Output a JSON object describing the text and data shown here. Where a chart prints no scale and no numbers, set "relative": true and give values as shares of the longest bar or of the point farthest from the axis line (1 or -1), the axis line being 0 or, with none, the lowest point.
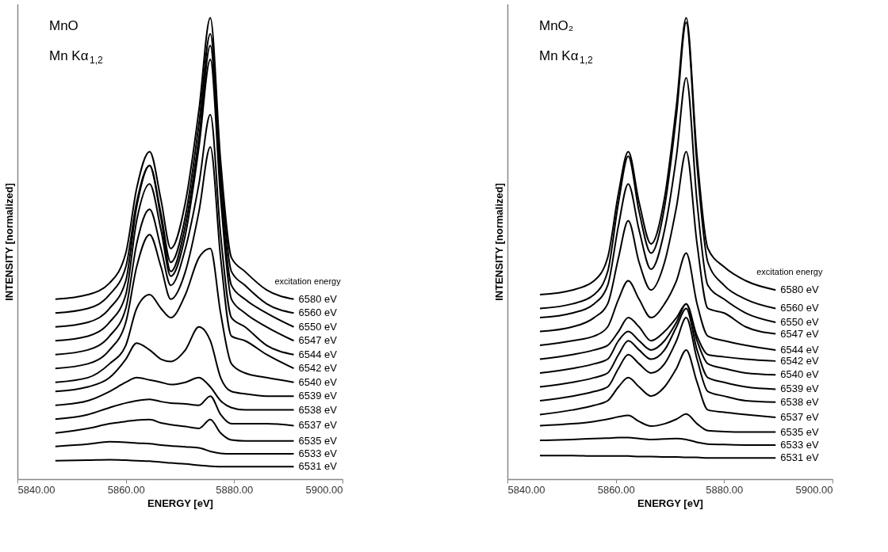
{
  "chart_data": [
    {
      "type": "line",
      "relative": true,
      "xlabel": "ENERGY  [eV]",
      "ylabel": "INTENSITY  [normalized]",
      "legend_title": "excitation energy",
      "grid": false,
      "line_style": "solid",
      "annotations": [
        "MnO",
        "Mn Kα$_{1,2}$"
      ],
      "xlim": [
        5840,
        5900
      ],
      "xticks": [
        {
          "value": 5840,
          "label": "5840.00"
        },
        {
          "value": 5860,
          "label": "5860.00"
        },
        {
          "value": 5880,
          "label": "5880.00"
        },
        {
          "value": 5900,
          "label": "5900.00"
        }
      ],
      "x": [
        5847,
        5853,
        5857,
        5860,
        5862,
        5864.4,
        5866.5,
        5868.3,
        5871,
        5873.5,
        5875.6,
        5877.5,
        5879.5,
        5882,
        5886,
        5891
      ],
      "series": [
        {
          "name": "6580 eV",
          "color": "#000000",
          "values": [
            0.39,
            0.4,
            0.425,
            0.49,
            0.63,
            0.71,
            0.605,
            0.5,
            0.6,
            0.8,
            1.0,
            0.69,
            0.48,
            0.45,
            0.41,
            0.39
          ]
        },
        {
          "name": "6560 eV",
          "color": "#000000",
          "values": [
            0.36,
            0.37,
            0.4,
            0.46,
            0.6,
            0.68,
            0.575,
            0.47,
            0.57,
            0.77,
            0.965,
            0.66,
            0.45,
            0.42,
            0.38,
            0.36
          ]
        },
        {
          "name": "6550 eV",
          "color": "#000000",
          "values": [
            0.33,
            0.34,
            0.37,
            0.43,
            0.59,
            0.68,
            0.565,
            0.45,
            0.55,
            0.74,
            0.94,
            0.63,
            0.42,
            0.39,
            0.36,
            0.33
          ]
        },
        {
          "name": "6547 eV",
          "color": "#000000",
          "values": [
            0.3,
            0.31,
            0.34,
            0.4,
            0.56,
            0.64,
            0.54,
            0.44,
            0.53,
            0.72,
            0.91,
            0.61,
            0.39,
            0.36,
            0.33,
            0.3
          ]
        },
        {
          "name": "6544 eV",
          "color": "#000000",
          "values": [
            0.27,
            0.28,
            0.31,
            0.37,
            0.51,
            0.585,
            0.5,
            0.42,
            0.5,
            0.64,
            0.79,
            0.53,
            0.35,
            0.33,
            0.29,
            0.27
          ]
        },
        {
          "name": "6542 eV",
          "color": "#000000",
          "values": [
            0.24,
            0.25,
            0.28,
            0.34,
            0.46,
            0.53,
            0.46,
            0.39,
            0.45,
            0.58,
            0.72,
            0.48,
            0.31,
            0.3,
            0.27,
            0.24
          ]
        },
        {
          "name": "6540 eV",
          "color": "#000000",
          "values": [
            0.21,
            0.22,
            0.25,
            0.29,
            0.37,
            0.4,
            0.37,
            0.35,
            0.4,
            0.48,
            0.5,
            0.36,
            0.25,
            0.23,
            0.22,
            0.21
          ]
        },
        {
          "name": "6539 eV",
          "color": "#000000",
          "values": [
            0.19,
            0.2,
            0.22,
            0.26,
            0.295,
            0.28,
            0.26,
            0.255,
            0.28,
            0.33,
            0.3,
            0.22,
            0.19,
            0.185,
            0.18,
            0.18
          ]
        },
        {
          "name": "6538 eV",
          "color": "#000000",
          "values": [
            0.16,
            0.17,
            0.19,
            0.21,
            0.22,
            0.215,
            0.21,
            0.205,
            0.21,
            0.22,
            0.2,
            0.17,
            0.155,
            0.15,
            0.15,
            0.15
          ]
        },
        {
          "name": "6537 eV",
          "color": "#000000",
          "values": [
            0.13,
            0.14,
            0.155,
            0.165,
            0.17,
            0.173,
            0.168,
            0.165,
            0.163,
            0.16,
            0.18,
            0.14,
            0.12,
            0.12,
            0.12,
            0.116
          ]
        },
        {
          "name": "6535 eV",
          "color": "#000000",
          "values": [
            0.1,
            0.11,
            0.12,
            0.125,
            0.128,
            0.129,
            0.122,
            0.118,
            0.114,
            0.11,
            0.129,
            0.1,
            0.085,
            0.083,
            0.083,
            0.083
          ]
        },
        {
          "name": "6533 eV",
          "color": "#000000",
          "values": [
            0.071,
            0.076,
            0.081,
            0.08,
            0.078,
            0.077,
            0.074,
            0.072,
            0.07,
            0.068,
            0.06,
            0.056,
            0.055,
            0.055,
            0.055,
            0.055
          ]
        },
        {
          "name": "6531 eV",
          "color": "#000000",
          "values": [
            0.04,
            0.041,
            0.042,
            0.041,
            0.04,
            0.039,
            0.037,
            0.035,
            0.033,
            0.03,
            0.028,
            0.027,
            0.027,
            0.027,
            0.027,
            0.027
          ]
        }
      ]
    },
    {
      "type": "line",
      "relative": true,
      "xlabel": "ENERGY  [eV]",
      "ylabel": "INTENSITY  [normalized]",
      "legend_title": "excitation energy",
      "grid": false,
      "line_style": "solid",
      "annotations": [
        "MnO₂",
        "Mn Kα$_{1,2}$"
      ],
      "xlim": [
        5840,
        5900
      ],
      "xticks": [
        {
          "value": 5840,
          "label": "5840.00"
        },
        {
          "value": 5860,
          "label": "5860.00"
        },
        {
          "value": 5880,
          "label": "5880.00"
        },
        {
          "value": 5900,
          "label": "5900.00"
        }
      ],
      "x": [
        5846,
        5852,
        5856,
        5858.5,
        5860.5,
        5862.3,
        5864.3,
        5866.5,
        5869,
        5871.2,
        5873,
        5875,
        5877,
        5880,
        5884,
        5889.5
      ],
      "series": [
        {
          "name": "6580 eV",
          "color": "#000000",
          "values": [
            0.4,
            0.41,
            0.43,
            0.48,
            0.62,
            0.71,
            0.6,
            0.51,
            0.61,
            0.81,
            1.0,
            0.7,
            0.5,
            0.46,
            0.43,
            0.41
          ]
        },
        {
          "name": "6560 eV",
          "color": "#000000",
          "values": [
            0.37,
            0.38,
            0.4,
            0.45,
            0.6,
            0.7,
            0.58,
            0.49,
            0.59,
            0.79,
            0.99,
            0.68,
            0.47,
            0.42,
            0.39,
            0.37
          ]
        },
        {
          "name": "6550 eV",
          "color": "#000000",
          "values": [
            0.35,
            0.36,
            0.38,
            0.42,
            0.55,
            0.64,
            0.54,
            0.455,
            0.54,
            0.7,
            0.87,
            0.6,
            0.42,
            0.39,
            0.36,
            0.34
          ]
        },
        {
          "name": "6547 eV",
          "color": "#000000",
          "values": [
            0.32,
            0.33,
            0.35,
            0.38,
            0.48,
            0.56,
            0.47,
            0.41,
            0.47,
            0.59,
            0.71,
            0.51,
            0.37,
            0.36,
            0.33,
            0.315
          ]
        },
        {
          "name": "6544 eV",
          "color": "#000000",
          "values": [
            0.29,
            0.3,
            0.31,
            0.33,
            0.39,
            0.43,
            0.39,
            0.35,
            0.38,
            0.43,
            0.49,
            0.38,
            0.31,
            0.3,
            0.29,
            0.28
          ]
        },
        {
          "name": "6542 eV",
          "color": "#000000",
          "values": [
            0.26,
            0.27,
            0.28,
            0.29,
            0.32,
            0.35,
            0.33,
            0.3,
            0.32,
            0.35,
            0.38,
            0.31,
            0.27,
            0.265,
            0.26,
            0.256
          ]
        },
        {
          "name": "6540 eV",
          "color": "#000000",
          "values": [
            0.23,
            0.24,
            0.25,
            0.26,
            0.3,
            0.32,
            0.3,
            0.28,
            0.3,
            0.34,
            0.38,
            0.3,
            0.25,
            0.24,
            0.23,
            0.226
          ]
        },
        {
          "name": "6539 eV",
          "color": "#000000",
          "values": [
            0.2,
            0.21,
            0.22,
            0.23,
            0.27,
            0.3,
            0.28,
            0.26,
            0.28,
            0.33,
            0.37,
            0.28,
            0.22,
            0.21,
            0.2,
            0.195
          ]
        },
        {
          "name": "6538 eV",
          "color": "#000000",
          "values": [
            0.17,
            0.18,
            0.19,
            0.2,
            0.24,
            0.27,
            0.25,
            0.23,
            0.25,
            0.3,
            0.35,
            0.26,
            0.19,
            0.18,
            0.17,
            0.167
          ]
        },
        {
          "name": "6537 eV",
          "color": "#000000",
          "values": [
            0.14,
            0.15,
            0.16,
            0.17,
            0.2,
            0.22,
            0.2,
            0.18,
            0.2,
            0.24,
            0.28,
            0.21,
            0.15,
            0.145,
            0.14,
            0.134
          ]
        },
        {
          "name": "6535 eV",
          "color": "#000000",
          "values": [
            0.116,
            0.12,
            0.125,
            0.13,
            0.135,
            0.138,
            0.125,
            0.115,
            0.12,
            0.13,
            0.141,
            0.12,
            0.105,
            0.103,
            0.102,
            0.102
          ]
        },
        {
          "name": "6533 eV",
          "color": "#000000",
          "values": [
            0.084,
            0.086,
            0.088,
            0.089,
            0.09,
            0.09,
            0.088,
            0.086,
            0.087,
            0.088,
            0.086,
            0.08,
            0.076,
            0.075,
            0.074,
            0.074
          ]
        },
        {
          "name": "6531 eV",
          "color": "#000000",
          "values": [
            0.051,
            0.051,
            0.05,
            0.05,
            0.05,
            0.05,
            0.049,
            0.049,
            0.048,
            0.048,
            0.047,
            0.047,
            0.046,
            0.046,
            0.046,
            0.046
          ]
        }
      ]
    }
  ]
}
